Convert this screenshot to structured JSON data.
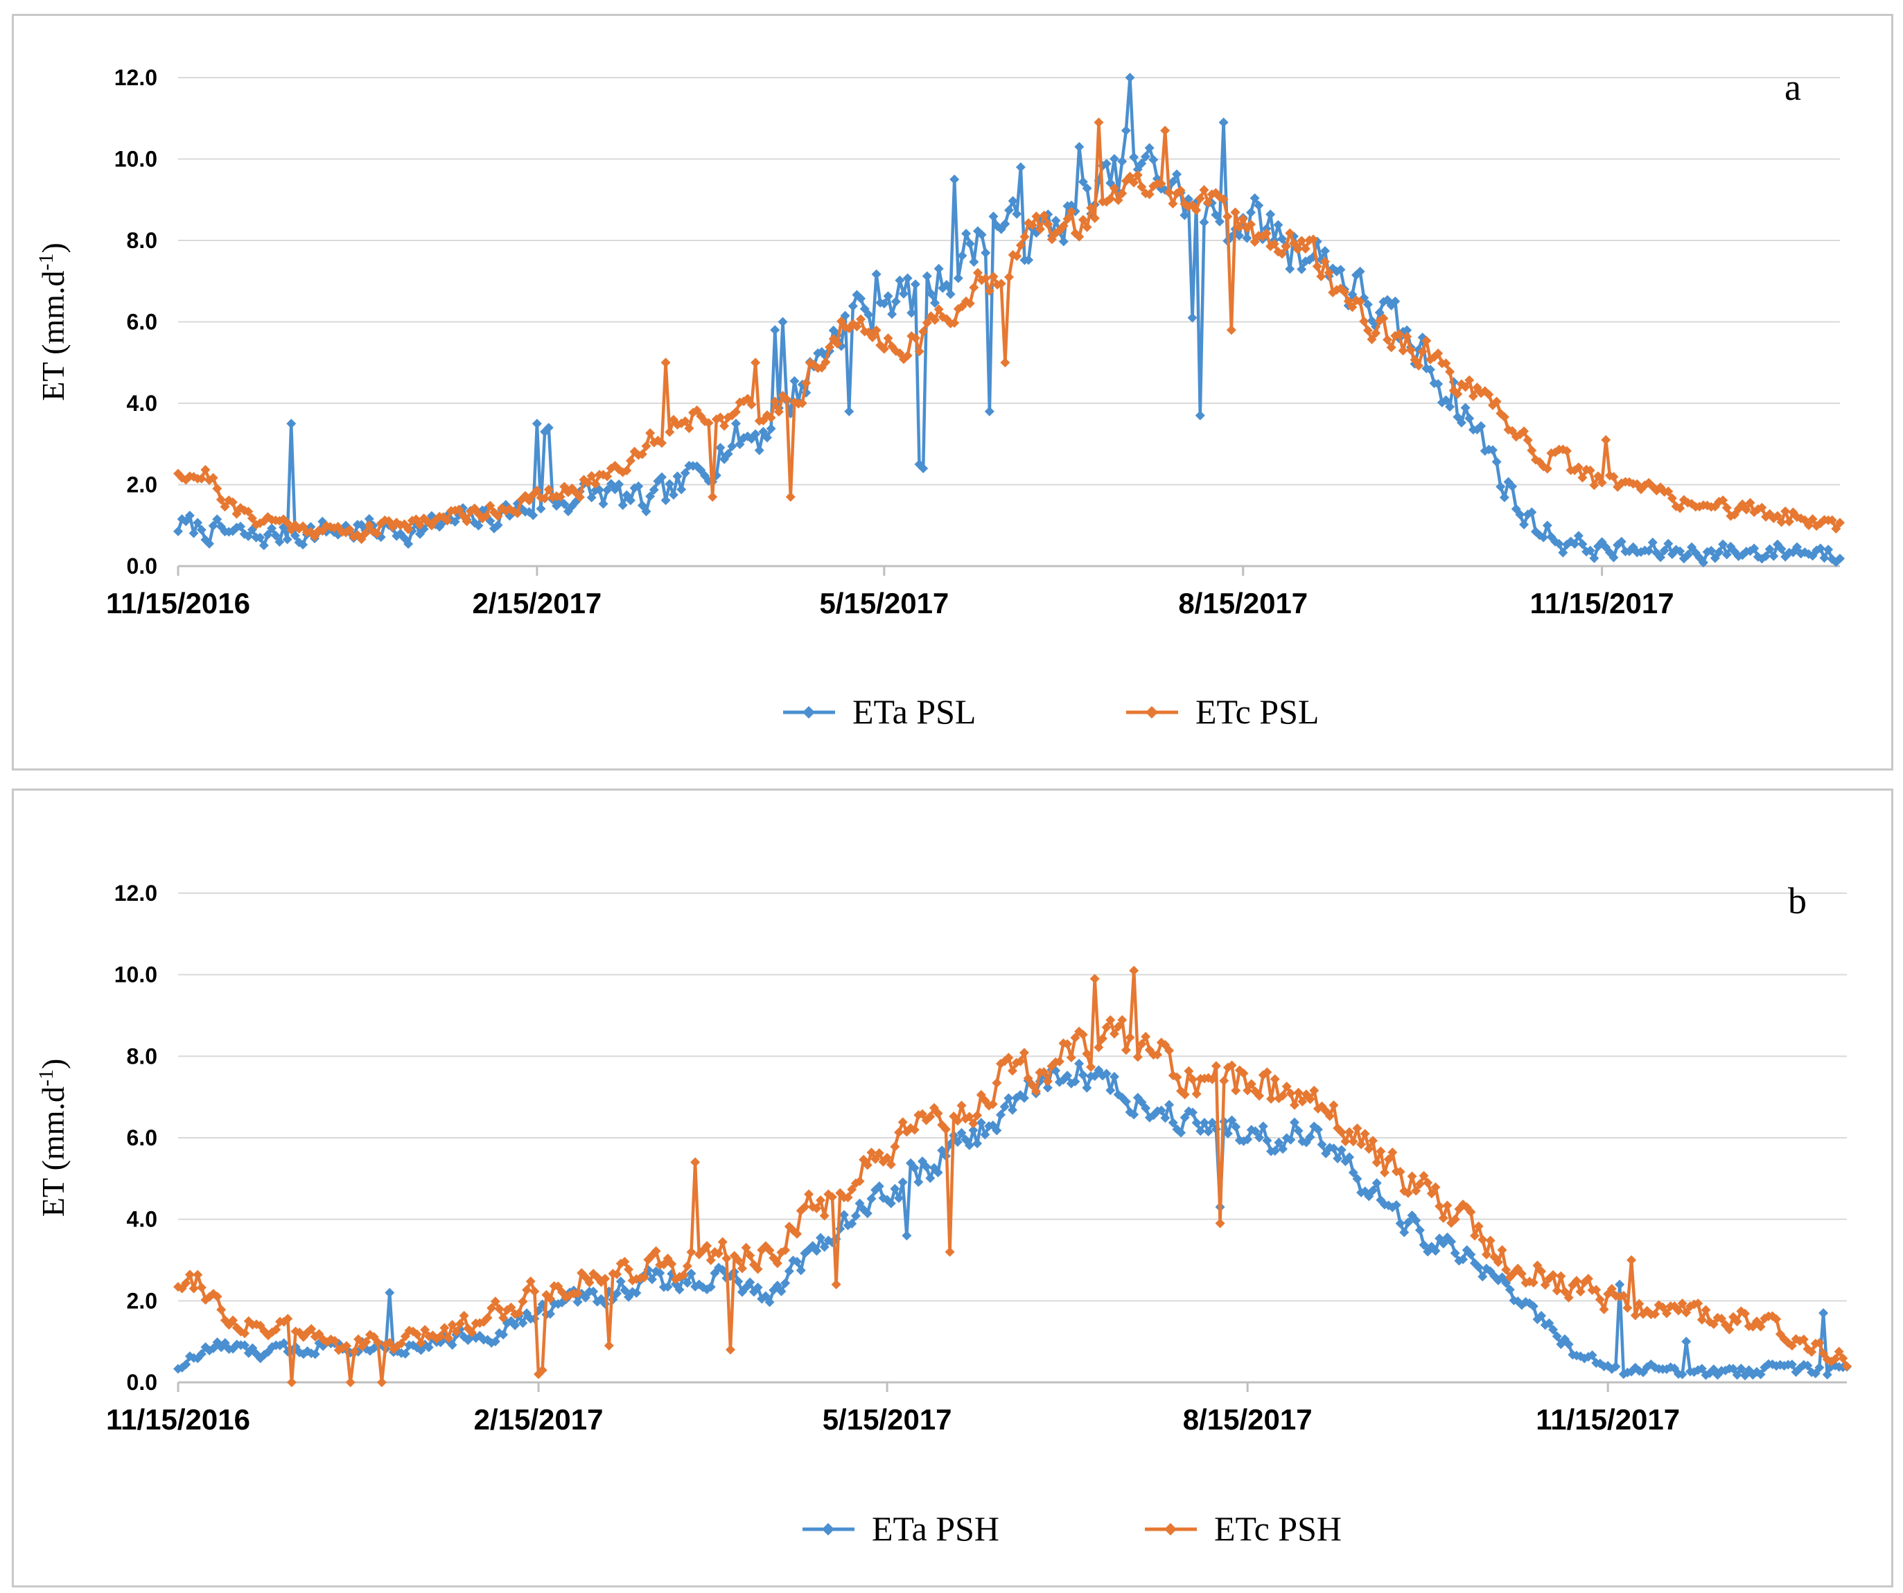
{
  "colors": {
    "eta": "#4a8fd0",
    "etc": "#e67832",
    "grid": "#d9d9d9",
    "axis": "#bfbfbf",
    "text": "#000000"
  },
  "chart_data": [
    {
      "panel_label": "a",
      "type": "line",
      "ylabel": "ET (mm.d",
      "ylabel_sup": "-1",
      "ylabel_close": ")",
      "ylim": [
        0,
        12
      ],
      "yticks": [
        "0.0",
        "2.0",
        "4.0",
        "6.0",
        "8.0",
        "10.0",
        "12.0"
      ],
      "xticks": [
        "11/15/2016",
        "2/15/2017",
        "5/15/2017",
        "8/15/2017",
        "11/15/2017"
      ],
      "x_range_days": [
        0,
        426
      ],
      "xtick_days": [
        0,
        92,
        181,
        273,
        365
      ],
      "series": [
        {
          "name": "ETa  PSL",
          "key": "eta",
          "anchors": [
            [
              0,
              1.0
            ],
            [
              20,
              0.7
            ],
            [
              40,
              0.9
            ],
            [
              60,
              0.9
            ],
            [
              80,
              1.2
            ],
            [
              95,
              1.6
            ],
            [
              110,
              1.8
            ],
            [
              120,
              1.5
            ],
            [
              130,
              2.0
            ],
            [
              140,
              3.0
            ],
            [
              150,
              3.3
            ],
            [
              160,
              4.5
            ],
            [
              170,
              6.0
            ],
            [
              180,
              6.8
            ],
            [
              190,
              6.5
            ],
            [
              200,
              7.5
            ],
            [
              210,
              8.5
            ],
            [
              220,
              8.0
            ],
            [
              230,
              8.8
            ],
            [
              240,
              9.5
            ],
            [
              250,
              9.8
            ],
            [
              258,
              9.0
            ],
            [
              265,
              8.5
            ],
            [
              275,
              8.5
            ],
            [
              285,
              8.0
            ],
            [
              295,
              7.5
            ],
            [
              305,
              6.5
            ],
            [
              315,
              5.5
            ],
            [
              325,
              4.5
            ],
            [
              335,
              3.0
            ],
            [
              345,
              1.2
            ],
            [
              355,
              0.6
            ],
            [
              365,
              0.4
            ],
            [
              380,
              0.35
            ],
            [
              400,
              0.35
            ],
            [
              415,
              0.4
            ],
            [
              426,
              0.3
            ]
          ],
          "noise": 0.9,
          "seed": 7,
          "spikes": [
            [
              29,
              3.5
            ],
            [
              92,
              3.5
            ],
            [
              94,
              3.3
            ],
            [
              95,
              3.4
            ],
            [
              153,
              5.8
            ],
            [
              155,
              6.0
            ],
            [
              172,
              3.8
            ],
            [
              178,
              5.7
            ],
            [
              190,
              2.5
            ],
            [
              191,
              2.4
            ],
            [
              199,
              9.5
            ],
            [
              208,
              3.8
            ],
            [
              216,
              9.8
            ],
            [
              231,
              10.3
            ],
            [
              243,
              10.7
            ],
            [
              244,
              12.0
            ],
            [
              262,
              3.7
            ],
            [
              260,
              6.1
            ],
            [
              268,
              10.9
            ],
            [
              285,
              7.3
            ],
            [
              300,
              6.4
            ]
          ]
        },
        {
          "name": "ETc  PSL",
          "key": "etc",
          "anchors": [
            [
              0,
              2.4
            ],
            [
              8,
              2.2
            ],
            [
              15,
              1.3
            ],
            [
              30,
              1.0
            ],
            [
              45,
              0.8
            ],
            [
              60,
              1.1
            ],
            [
              75,
              1.3
            ],
            [
              90,
              1.6
            ],
            [
              100,
              1.8
            ],
            [
              110,
              2.3
            ],
            [
              120,
              3.0
            ],
            [
              130,
              3.7
            ],
            [
              140,
              3.8
            ],
            [
              150,
              3.6
            ],
            [
              160,
              4.5
            ],
            [
              170,
              5.8
            ],
            [
              180,
              5.6
            ],
            [
              190,
              5.5
            ],
            [
              200,
              6.5
            ],
            [
              210,
              7.2
            ],
            [
              220,
              8.3
            ],
            [
              230,
              8.3
            ],
            [
              240,
              9.2
            ],
            [
              250,
              9.3
            ],
            [
              260,
              9.0
            ],
            [
              270,
              8.6
            ],
            [
              280,
              8.0
            ],
            [
              290,
              7.8
            ],
            [
              300,
              6.5
            ],
            [
              310,
              5.7
            ],
            [
              320,
              5.2
            ],
            [
              330,
              4.3
            ],
            [
              340,
              3.5
            ],
            [
              350,
              2.8
            ],
            [
              360,
              2.2
            ],
            [
              370,
              2.0
            ],
            [
              380,
              1.8
            ],
            [
              390,
              1.5
            ],
            [
              400,
              1.4
            ],
            [
              415,
              1.2
            ],
            [
              426,
              1.0
            ]
          ],
          "noise": 0.55,
          "seed": 21,
          "spikes": [
            [
              125,
              5.0
            ],
            [
              137,
              1.7
            ],
            [
              148,
              5.0
            ],
            [
              157,
              1.7
            ],
            [
              212,
              5.0
            ],
            [
              236,
              10.9
            ],
            [
              253,
              10.7
            ],
            [
              270,
              5.8
            ],
            [
              366,
              3.1
            ]
          ]
        }
      ],
      "legend": [
        {
          "label": "ETa  PSL",
          "key": "eta"
        },
        {
          "label": "ETc  PSL",
          "key": "etc"
        }
      ]
    },
    {
      "panel_label": "b",
      "type": "line",
      "ylabel": "ET (mm.d",
      "ylabel_sup": "-1",
      "ylabel_close": ")",
      "ylim": [
        0,
        12
      ],
      "yticks": [
        "0.0",
        "2.0",
        "4.0",
        "6.0",
        "8.0",
        "10.0",
        "12.0"
      ],
      "xticks": [
        "11/15/2016",
        "2/15/2017",
        "5/15/2017",
        "8/15/2017",
        "11/15/2017"
      ],
      "x_range_days": [
        0,
        426
      ],
      "xtick_days": [
        0,
        92,
        181,
        273,
        365
      ],
      "series": [
        {
          "name": "ETa  PSH",
          "key": "eta",
          "anchors": [
            [
              0,
              0.4
            ],
            [
              10,
              0.9
            ],
            [
              20,
              0.7
            ],
            [
              30,
              0.8
            ],
            [
              40,
              1.0
            ],
            [
              50,
              0.9
            ],
            [
              60,
              0.9
            ],
            [
              70,
              1.1
            ],
            [
              80,
              1.2
            ],
            [
              90,
              1.6
            ],
            [
              100,
              2.0
            ],
            [
              110,
              2.2
            ],
            [
              120,
              2.5
            ],
            [
              130,
              2.5
            ],
            [
              140,
              2.6
            ],
            [
              150,
              2.0
            ],
            [
              160,
              3.1
            ],
            [
              170,
              4.0
            ],
            [
              180,
              4.6
            ],
            [
              190,
              5.2
            ],
            [
              200,
              5.8
            ],
            [
              210,
              6.5
            ],
            [
              220,
              7.4
            ],
            [
              230,
              7.6
            ],
            [
              240,
              7.2
            ],
            [
              250,
              6.6
            ],
            [
              260,
              6.6
            ],
            [
              270,
              6.2
            ],
            [
              280,
              6.0
            ],
            [
              290,
              6.3
            ],
            [
              300,
              5.0
            ],
            [
              310,
              4.2
            ],
            [
              320,
              3.4
            ],
            [
              330,
              3.0
            ],
            [
              340,
              2.3
            ],
            [
              350,
              1.3
            ],
            [
              360,
              0.5
            ],
            [
              370,
              0.3
            ],
            [
              380,
              0.3
            ],
            [
              395,
              0.2
            ],
            [
              410,
              0.35
            ],
            [
              426,
              0.3
            ]
          ],
          "noise": 0.55,
          "seed": 33,
          "spikes": [
            [
              54,
              2.2
            ],
            [
              186,
              3.6
            ],
            [
              266,
              4.3
            ],
            [
              368,
              2.4
            ],
            [
              385,
              1.0
            ],
            [
              420,
              1.7
            ]
          ]
        },
        {
          "name": "ETc  PSH",
          "key": "etc",
          "anchors": [
            [
              0,
              2.5
            ],
            [
              6,
              2.6
            ],
            [
              12,
              1.6
            ],
            [
              25,
              1.3
            ],
            [
              40,
              1.0
            ],
            [
              55,
              0.9
            ],
            [
              70,
              1.3
            ],
            [
              80,
              1.7
            ],
            [
              90,
              2.2
            ],
            [
              100,
              2.5
            ],
            [
              110,
              2.6
            ],
            [
              120,
              3.0
            ],
            [
              130,
              2.8
            ],
            [
              140,
              3.3
            ],
            [
              150,
              3.1
            ],
            [
              160,
              4.0
            ],
            [
              170,
              4.8
            ],
            [
              180,
              5.4
            ],
            [
              190,
              6.2
            ],
            [
              200,
              6.6
            ],
            [
              210,
              7.4
            ],
            [
              220,
              7.6
            ],
            [
              230,
              8.1
            ],
            [
              240,
              8.4
            ],
            [
              250,
              8.1
            ],
            [
              260,
              7.2
            ],
            [
              270,
              7.4
            ],
            [
              280,
              7.2
            ],
            [
              290,
              7.2
            ],
            [
              300,
              6.0
            ],
            [
              310,
              5.3
            ],
            [
              320,
              4.6
            ],
            [
              330,
              3.8
            ],
            [
              340,
              3.0
            ],
            [
              350,
              2.6
            ],
            [
              360,
              2.2
            ],
            [
              370,
              2.0
            ],
            [
              385,
              1.7
            ],
            [
              400,
              1.5
            ],
            [
              415,
              1.1
            ],
            [
              426,
              0.6
            ]
          ],
          "noise": 0.7,
          "seed": 55,
          "spikes": [
            [
              29,
              0.0
            ],
            [
              44,
              0.0
            ],
            [
              52,
              0.0
            ],
            [
              92,
              0.2
            ],
            [
              93,
              0.3
            ],
            [
              110,
              0.9
            ],
            [
              132,
              5.4
            ],
            [
              141,
              0.8
            ],
            [
              168,
              2.4
            ],
            [
              197,
              3.2
            ],
            [
              234,
              9.9
            ],
            [
              244,
              10.1
            ],
            [
              266,
              3.9
            ],
            [
              371,
              3.0
            ]
          ]
        }
      ],
      "legend": [
        {
          "label": "ETa  PSH",
          "key": "eta"
        },
        {
          "label": "ETc  PSH",
          "key": "etc"
        }
      ]
    }
  ]
}
